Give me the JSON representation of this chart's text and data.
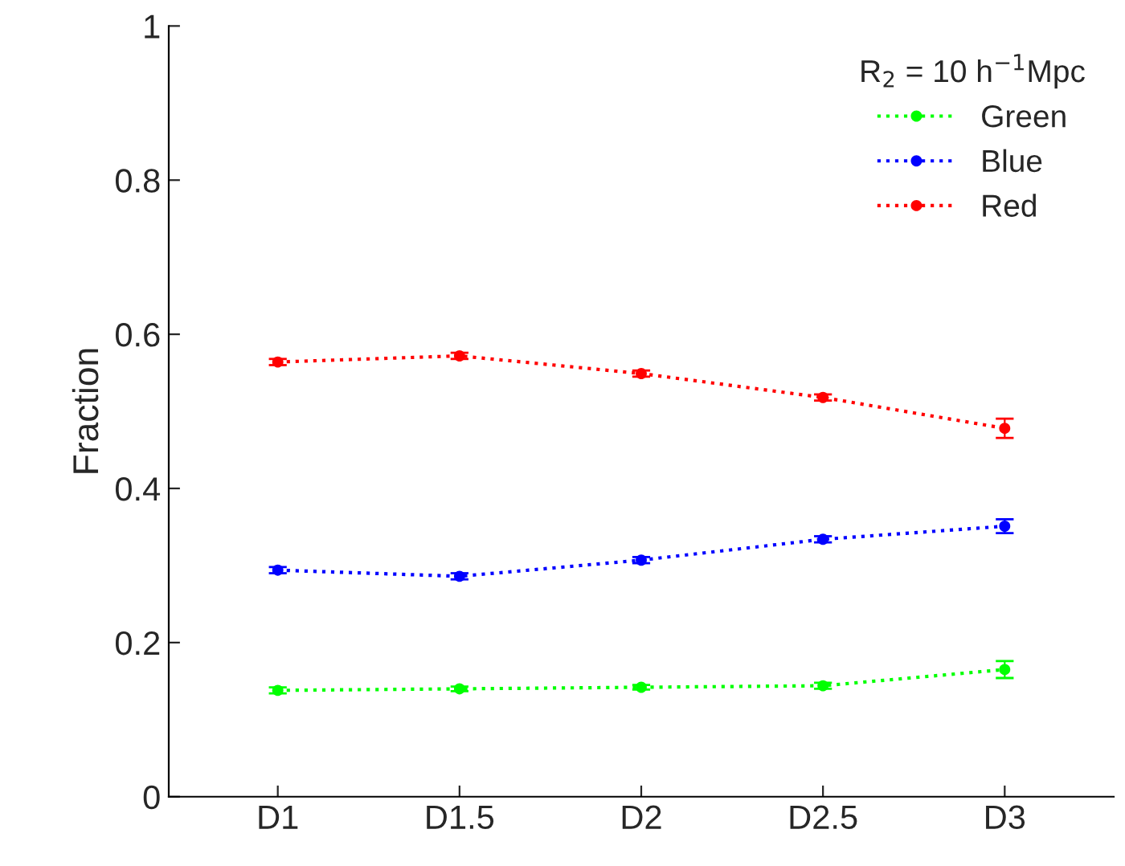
{
  "chart_data": {
    "type": "line",
    "ylabel": "Fraction",
    "legend_title": "R$_{2}$ = 10 h$^{−1}$Mpc",
    "categories": [
      "D1",
      "D1.5",
      "D2",
      "D2.5",
      "D3"
    ],
    "series": [
      {
        "name": "Green",
        "color": "#00ff00",
        "values": [
          0.138,
          0.14,
          0.142,
          0.144,
          0.165
        ],
        "errors": [
          0.004,
          0.003,
          0.003,
          0.004,
          0.011
        ]
      },
      {
        "name": "Blue",
        "color": "#0000ff",
        "values": [
          0.294,
          0.286,
          0.307,
          0.334,
          0.351
        ],
        "errors": [
          0.004,
          0.004,
          0.004,
          0.004,
          0.009
        ]
      },
      {
        "name": "Red",
        "color": "#ff0000",
        "values": [
          0.564,
          0.572,
          0.549,
          0.518,
          0.478
        ],
        "errors": [
          0.004,
          0.004,
          0.004,
          0.004,
          0.0125
        ]
      }
    ],
    "ylim": [
      0,
      1
    ],
    "yticks": [
      0,
      0.2,
      0.4,
      0.6,
      0.8,
      1
    ],
    "grid": false,
    "legend": "top right",
    "marker": "circle",
    "line_style": "dotted"
  }
}
